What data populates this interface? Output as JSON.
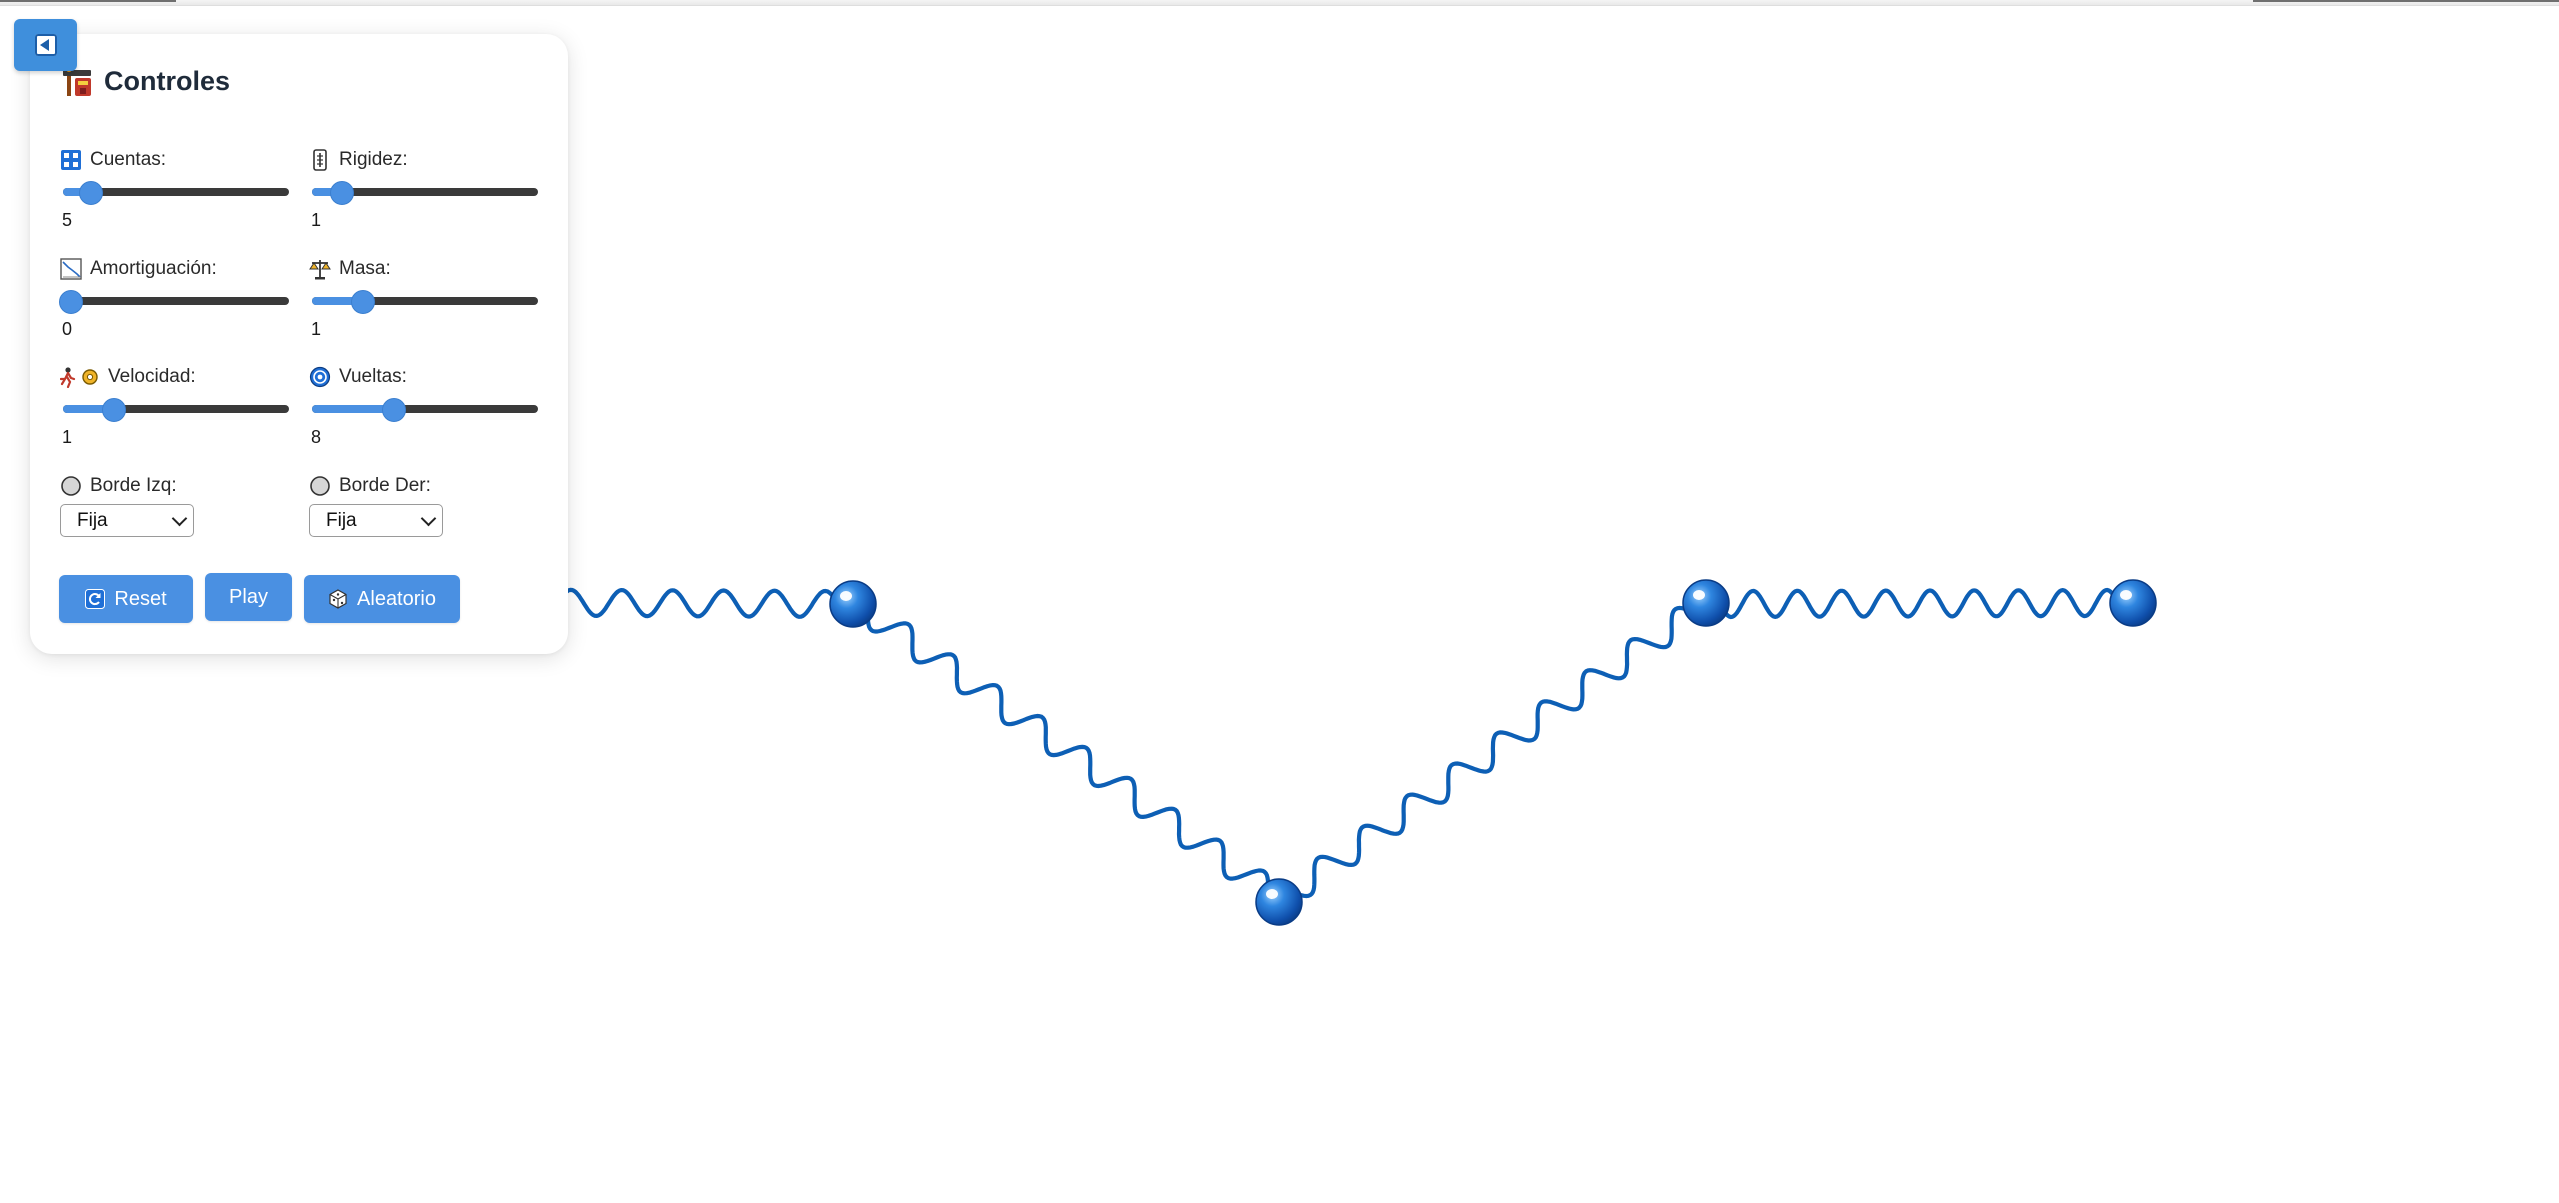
{
  "panel": {
    "title": "Controles",
    "title_icon": "control-knobs-icon",
    "toggle_icon": "collapse-left-icon"
  },
  "controls": {
    "cuentas": {
      "label": "Cuentas:",
      "value": "5",
      "fraction": 0.12,
      "icon": "beads-icon"
    },
    "rigidez": {
      "label": "Rigidez:",
      "value": "1",
      "fraction": 0.13,
      "icon": "stiffness-icon"
    },
    "amortiguacion": {
      "label": "Amortiguación:",
      "value": "0",
      "fraction": 0.03,
      "icon": "damping-chart-icon"
    },
    "masa": {
      "label": "Masa:",
      "value": "1",
      "fraction": 0.22,
      "icon": "balance-scale-icon"
    },
    "velocidad": {
      "label": "Velocidad:",
      "value": "1",
      "fraction": 0.22,
      "icon": "runner-gear-icon"
    },
    "vueltas": {
      "label": "Vueltas:",
      "value": "8",
      "fraction": 0.36,
      "icon": "coil-icon"
    }
  },
  "borders": {
    "left": {
      "label": "Borde Izq:",
      "selected": "Fija",
      "icon": "circle-icon"
    },
    "right": {
      "label": "Borde Der:",
      "selected": "Fija",
      "icon": "circle-icon"
    }
  },
  "buttons": {
    "reset": {
      "label": "Reset",
      "icon": "reset-icon"
    },
    "play": {
      "label": "Play"
    },
    "aleatorio": {
      "label": "Aleatorio",
      "icon": "dice-icon"
    }
  },
  "colors": {
    "accent": "#4a90e2",
    "spring": "#0d5fb5",
    "bead": "#1a64c8",
    "slider_track": "#3a3a3a",
    "title_text": "#1f2b3a"
  }
}
